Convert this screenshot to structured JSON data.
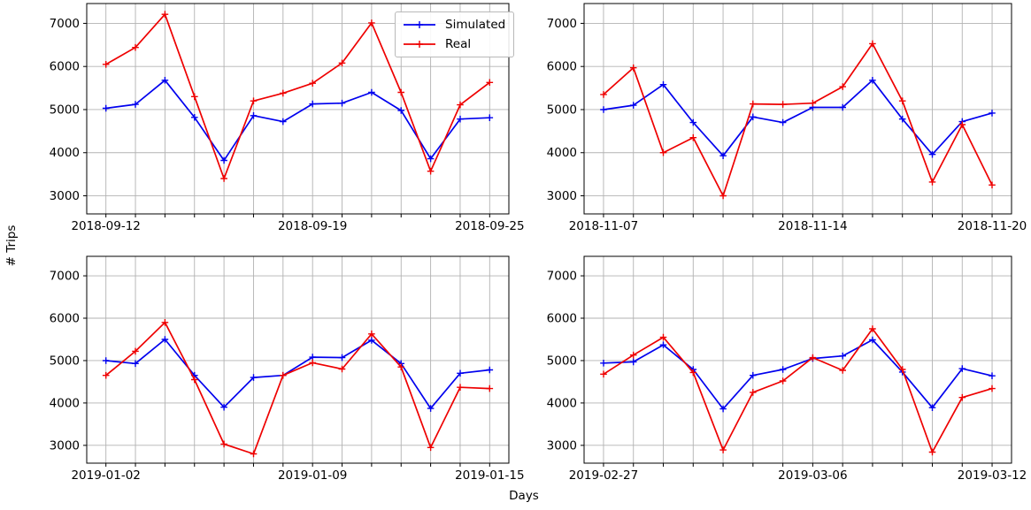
{
  "figure": {
    "ylabel": "# Trips",
    "xlabel": "Days",
    "background_color": "#ffffff",
    "grid_color": "#b2b2b2",
    "axis_color": "#000000",
    "tick_label_color": "#000000"
  },
  "legend": {
    "position": "upper-right-of-first-subplot",
    "items": [
      {
        "label": "Simulated",
        "color": "#0000ee",
        "marker": "plus"
      },
      {
        "label": "Real",
        "color": "#ee0000",
        "marker": "plus"
      }
    ]
  },
  "chart_data": [
    {
      "type": "line",
      "title": "",
      "x": [
        "2018-09-12",
        "2018-09-13",
        "2018-09-14",
        "2018-09-15",
        "2018-09-16",
        "2018-09-17",
        "2018-09-18",
        "2018-09-19",
        "2018-09-20",
        "2018-09-21",
        "2018-09-22",
        "2018-09-23",
        "2018-09-24",
        "2018-09-25"
      ],
      "xticks": [
        {
          "index": 0,
          "label": "2018-09-12"
        },
        {
          "index": 7,
          "label": "2018-09-19"
        },
        {
          "index": 13,
          "label": "2018-09-25"
        }
      ],
      "yticks": [
        3000,
        4000,
        5000,
        6000,
        7000
      ],
      "ylim": [
        2580,
        7460
      ],
      "grid": true,
      "series": [
        {
          "name": "Simulated",
          "color": "#0000ee",
          "marker": "plus",
          "values": [
            5030,
            5120,
            5680,
            4820,
            3820,
            4860,
            4720,
            5130,
            5150,
            5400,
            4980,
            3860,
            4780,
            4810
          ]
        },
        {
          "name": "Real",
          "color": "#ee0000",
          "marker": "plus",
          "values": [
            6050,
            6440,
            7210,
            5300,
            3400,
            5200,
            5380,
            5610,
            6080,
            7010,
            5400,
            3570,
            5110,
            5630
          ]
        }
      ]
    },
    {
      "type": "line",
      "title": "",
      "x": [
        "2018-11-07",
        "2018-11-08",
        "2018-11-09",
        "2018-11-10",
        "2018-11-11",
        "2018-11-12",
        "2018-11-13",
        "2018-11-14",
        "2018-11-15",
        "2018-11-16",
        "2018-11-17",
        "2018-11-18",
        "2018-11-19",
        "2018-11-20"
      ],
      "xticks": [
        {
          "index": 0,
          "label": "2018-11-07"
        },
        {
          "index": 7,
          "label": "2018-11-14"
        },
        {
          "index": 13,
          "label": "2018-11-20"
        }
      ],
      "yticks": [
        3000,
        4000,
        5000,
        6000,
        7000
      ],
      "ylim": [
        2580,
        7460
      ],
      "grid": true,
      "series": [
        {
          "name": "Simulated",
          "color": "#0000ee",
          "marker": "plus",
          "values": [
            5000,
            5100,
            5580,
            4700,
            3930,
            4830,
            4700,
            5050,
            5050,
            5680,
            4780,
            3960,
            4720,
            4920
          ]
        },
        {
          "name": "Real",
          "color": "#ee0000",
          "marker": "plus",
          "values": [
            5350,
            5970,
            4000,
            4350,
            3000,
            5130,
            5120,
            5150,
            5530,
            6530,
            5200,
            3320,
            4650,
            3250
          ]
        }
      ]
    },
    {
      "type": "line",
      "title": "",
      "x": [
        "2019-01-02",
        "2019-01-03",
        "2019-01-04",
        "2019-01-05",
        "2019-01-06",
        "2019-01-07",
        "2019-01-08",
        "2019-01-09",
        "2019-01-10",
        "2019-01-11",
        "2019-01-12",
        "2019-01-13",
        "2019-01-14",
        "2019-01-15"
      ],
      "xticks": [
        {
          "index": 0,
          "label": "2019-01-02"
        },
        {
          "index": 7,
          "label": "2019-01-09"
        },
        {
          "index": 13,
          "label": "2019-01-15"
        }
      ],
      "yticks": [
        3000,
        4000,
        5000,
        6000,
        7000
      ],
      "ylim": [
        2580,
        7460
      ],
      "grid": true,
      "series": [
        {
          "name": "Simulated",
          "color": "#0000ee",
          "marker": "plus",
          "values": [
            5000,
            4930,
            5500,
            4650,
            3900,
            4600,
            4650,
            5080,
            5070,
            5480,
            4930,
            3870,
            4700,
            4780
          ]
        },
        {
          "name": "Real",
          "color": "#ee0000",
          "marker": "plus",
          "values": [
            4650,
            5220,
            5900,
            4550,
            3030,
            2800,
            4650,
            4950,
            4800,
            5630,
            4850,
            2950,
            4370,
            4340
          ]
        }
      ]
    },
    {
      "type": "line",
      "title": "",
      "x": [
        "2019-02-27",
        "2019-02-28",
        "2019-03-01",
        "2019-03-02",
        "2019-03-03",
        "2019-03-04",
        "2019-03-05",
        "2019-03-06",
        "2019-03-07",
        "2019-03-08",
        "2019-03-09",
        "2019-03-10",
        "2019-03-11",
        "2019-03-12"
      ],
      "xticks": [
        {
          "index": 0,
          "label": "2019-02-27"
        },
        {
          "index": 7,
          "label": "2019-03-06"
        },
        {
          "index": 13,
          "label": "2019-03-12"
        }
      ],
      "yticks": [
        3000,
        4000,
        5000,
        6000,
        7000
      ],
      "ylim": [
        2580,
        7460
      ],
      "grid": true,
      "series": [
        {
          "name": "Simulated",
          "color": "#0000ee",
          "marker": "plus",
          "values": [
            4940,
            4970,
            5370,
            4790,
            3860,
            4650,
            4790,
            5050,
            5110,
            5490,
            4730,
            3890,
            4810,
            4640
          ]
        },
        {
          "name": "Real",
          "color": "#ee0000",
          "marker": "plus",
          "values": [
            4680,
            5130,
            5550,
            4720,
            2890,
            4250,
            4520,
            5070,
            4770,
            5750,
            4790,
            2840,
            4130,
            4340
          ]
        }
      ]
    }
  ]
}
